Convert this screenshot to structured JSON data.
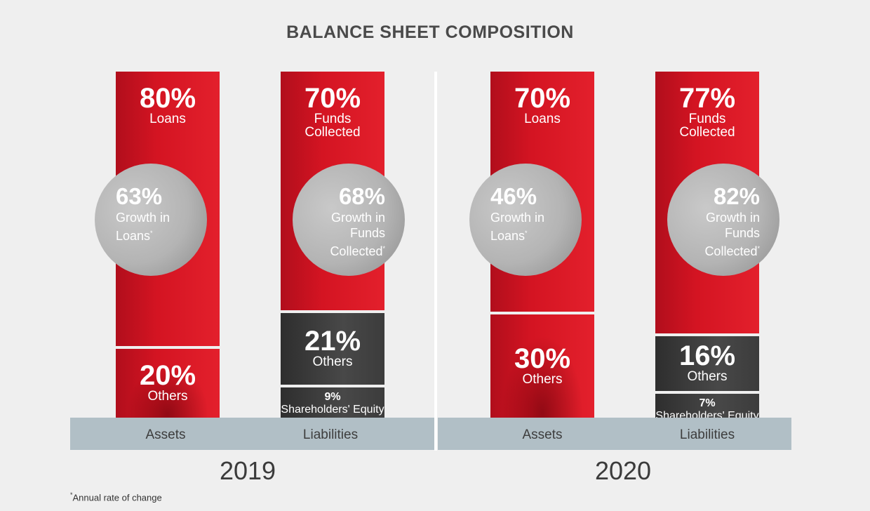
{
  "chart_data": {
    "type": "bar",
    "title": "BALANCE SHEET COMPOSITION",
    "footnote": "*Annual rate of change",
    "colors": {
      "primary": "#d41422",
      "secondary": "#454545",
      "circle": "#b4b4b4",
      "band": "#b1bfc6",
      "background": "#efefef"
    },
    "years": [
      {
        "year": "2019",
        "assets": {
          "label": "Assets",
          "segments": [
            {
              "name": "Loans",
              "value": 80,
              "pct": "80%"
            },
            {
              "name": "Others",
              "value": 20,
              "pct": "20%"
            }
          ],
          "growth": {
            "pct": "63%",
            "line1": "Growth in",
            "line2": "Loans",
            "line3": ""
          }
        },
        "liabilities": {
          "label": "Liabilities",
          "segments": [
            {
              "name": "Funds Collected",
              "line1": "Funds",
              "line2": "Collected",
              "value": 70,
              "pct": "70%"
            },
            {
              "name": "Others",
              "value": 21,
              "pct": "21%"
            },
            {
              "name": "Shareholders' Equity",
              "value": 9,
              "pct": "9%"
            }
          ],
          "growth": {
            "pct": "68%",
            "line1": "Growth in",
            "line2": "Funds",
            "line3": "Collected"
          }
        }
      },
      {
        "year": "2020",
        "assets": {
          "label": "Assets",
          "segments": [
            {
              "name": "Loans",
              "value": 70,
              "pct": "70%"
            },
            {
              "name": "Others",
              "value": 30,
              "pct": "30%"
            }
          ],
          "growth": {
            "pct": "46%",
            "line1": "Growth in",
            "line2": "Loans",
            "line3": ""
          }
        },
        "liabilities": {
          "label": "Liabilities",
          "segments": [
            {
              "name": "Funds Collected",
              "line1": "Funds",
              "line2": "Collected",
              "value": 77,
              "pct": "77%"
            },
            {
              "name": "Others",
              "value": 16,
              "pct": "16%"
            },
            {
              "name": "Shareholders' Equity",
              "value": 7,
              "pct": "7%"
            }
          ],
          "growth": {
            "pct": "82%",
            "line1": "Growth in",
            "line2": "Funds",
            "line3": "Collected"
          }
        }
      }
    ]
  }
}
